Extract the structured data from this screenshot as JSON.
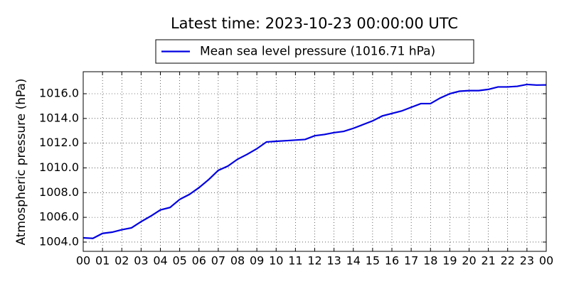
{
  "chart_data": {
    "type": "line",
    "title": "Latest time: 2023-10-23 00:00:00 UTC",
    "y_label": "Atmospheric pressure (hPa)",
    "legend": "top",
    "grid": true,
    "x": [
      0,
      0.5,
      1,
      1.5,
      2,
      2.5,
      3,
      3.5,
      4,
      4.5,
      5,
      5.5,
      6,
      6.5,
      7,
      7.5,
      8,
      8.5,
      9,
      9.5,
      10,
      10.5,
      11,
      11.5,
      12,
      12.5,
      13,
      13.5,
      14,
      14.5,
      15,
      15.5,
      16,
      16.5,
      17,
      17.5,
      18,
      18.5,
      19,
      19.5,
      20,
      20.5,
      21,
      21.5,
      22,
      22.5,
      23,
      23.5,
      24
    ],
    "series": [
      {
        "name": "Mean sea level pressure (1016.71 hPa)",
        "color": "#0000e0",
        "values": [
          1004.34,
          1004.3,
          1004.7,
          1004.8,
          1005.0,
          1005.15,
          1005.65,
          1006.1,
          1006.6,
          1006.8,
          1007.45,
          1007.85,
          1008.4,
          1009.05,
          1009.8,
          1010.15,
          1010.7,
          1011.1,
          1011.55,
          1012.1,
          1012.15,
          1012.2,
          1012.25,
          1012.3,
          1012.6,
          1012.7,
          1012.85,
          1012.95,
          1013.2,
          1013.5,
          1013.8,
          1014.2,
          1014.4,
          1014.6,
          1014.9,
          1015.2,
          1015.2,
          1015.65,
          1016.0,
          1016.2,
          1016.25,
          1016.25,
          1016.35,
          1016.55,
          1016.55,
          1016.6,
          1016.75,
          1016.7,
          1016.71
        ]
      }
    ],
    "xlim": [
      0,
      24
    ],
    "xticks": [
      {
        "value": 0,
        "label": "00"
      },
      {
        "value": 1,
        "label": "01"
      },
      {
        "value": 2,
        "label": "02"
      },
      {
        "value": 3,
        "label": "03"
      },
      {
        "value": 4,
        "label": "04"
      },
      {
        "value": 5,
        "label": "05"
      },
      {
        "value": 6,
        "label": "06"
      },
      {
        "value": 7,
        "label": "07"
      },
      {
        "value": 8,
        "label": "08"
      },
      {
        "value": 9,
        "label": "09"
      },
      {
        "value": 10,
        "label": "10"
      },
      {
        "value": 11,
        "label": "11"
      },
      {
        "value": 12,
        "label": "12"
      },
      {
        "value": 13,
        "label": "13"
      },
      {
        "value": 14,
        "label": "14"
      },
      {
        "value": 15,
        "label": "15"
      },
      {
        "value": 16,
        "label": "16"
      },
      {
        "value": 17,
        "label": "17"
      },
      {
        "value": 18,
        "label": "18"
      },
      {
        "value": 19,
        "label": "19"
      },
      {
        "value": 20,
        "label": "20"
      },
      {
        "value": 21,
        "label": "21"
      },
      {
        "value": 22,
        "label": "22"
      },
      {
        "value": 23,
        "label": "23"
      },
      {
        "value": 24,
        "label": "00"
      }
    ],
    "ylim": [
      1003.25,
      1017.78
    ],
    "yticks": [
      {
        "value": 1004,
        "label": "1004.0"
      },
      {
        "value": 1006,
        "label": "1006.0"
      },
      {
        "value": 1008,
        "label": "1008.0"
      },
      {
        "value": 1010,
        "label": "1010.0"
      },
      {
        "value": 1012,
        "label": "1012.0"
      },
      {
        "value": 1014,
        "label": "1014.0"
      },
      {
        "value": 1016,
        "label": "1016.0"
      }
    ]
  }
}
